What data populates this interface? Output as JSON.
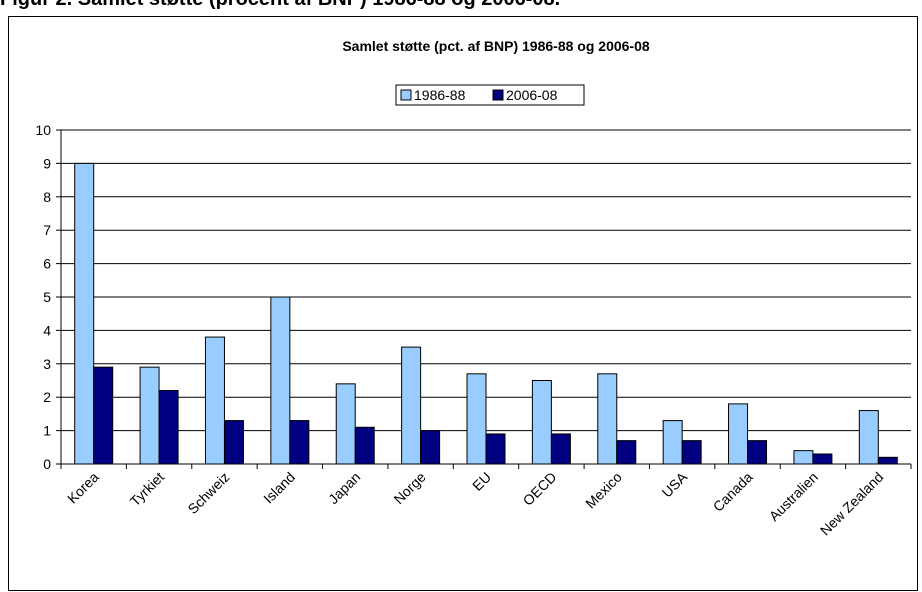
{
  "figure_caption": "Figur 2. Samlet støtte (procent af BNP) 1986-88 og 2006-08.",
  "chart_data": {
    "type": "bar",
    "title": "Samlet støtte (pct. af BNP) 1986-88 og 2006-08",
    "xlabel": "",
    "ylabel": "",
    "ylim": [
      0,
      10
    ],
    "yticks": [
      0,
      1,
      2,
      3,
      4,
      5,
      6,
      7,
      8,
      9,
      10
    ],
    "grid": true,
    "legend_position": "top-center",
    "categories": [
      "Korea",
      "Tyrkiet",
      "Schweiz",
      "Island",
      "Japan",
      "Norge",
      "EU",
      "OECD",
      "Mexico",
      "USA",
      "Canada",
      "Australien",
      "New Zealand"
    ],
    "series": [
      {
        "name": "1986-88",
        "color": "#99ccff",
        "values": [
          9.0,
          2.9,
          3.8,
          5.0,
          2.4,
          3.5,
          2.7,
          2.5,
          2.7,
          1.3,
          1.8,
          0.4,
          1.6
        ]
      },
      {
        "name": "2006-08",
        "color": "#000080",
        "values": [
          2.9,
          2.2,
          1.3,
          1.3,
          1.1,
          1.0,
          0.9,
          0.9,
          0.7,
          0.7,
          0.7,
          0.3,
          0.2
        ]
      }
    ]
  }
}
